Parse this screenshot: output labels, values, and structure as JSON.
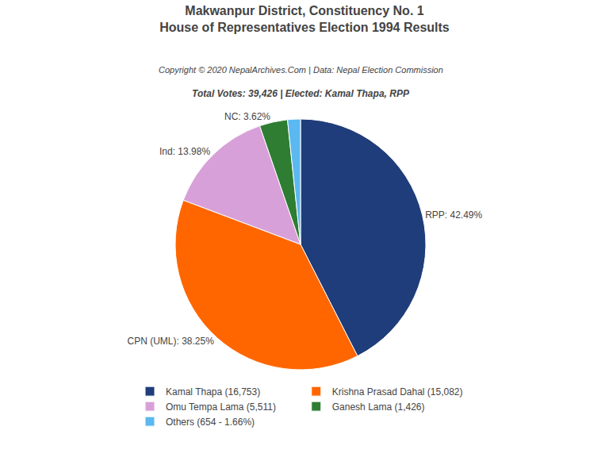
{
  "chart_data": {
    "type": "pie",
    "title": [
      "Makwanpur District, Constituency No. 1",
      "House of Representatives Election 1994 Results"
    ],
    "annotations": [
      "Copyright © 2020 NepalArchives.Com | Data: Nepal Election Commission",
      "Total Votes: 39,426 | Elected: Kamal Thapa, RPP"
    ],
    "categories": [
      "Kamal Thapa (16,753)",
      "Krishna Prasad Dahal (15,082)",
      "Omu Tempa Lama (5,511)",
      "Ganesh Lama (1,426)",
      "Others (654 - 1.66%)"
    ],
    "values": [
      42.49,
      38.25,
      13.98,
      3.62,
      1.66
    ],
    "value_labels": [
      "RPP: 42.49%",
      "CPN (UML): 38.25%",
      "Ind: 13.98%",
      "NC: 3.62%",
      null
    ],
    "colors": [
      "#1F3D7A",
      "#FF6600",
      "#D8A0D8",
      "#2E7D32",
      "#5BB8F0"
    ],
    "data_labels": true,
    "legend": "bottom"
  }
}
